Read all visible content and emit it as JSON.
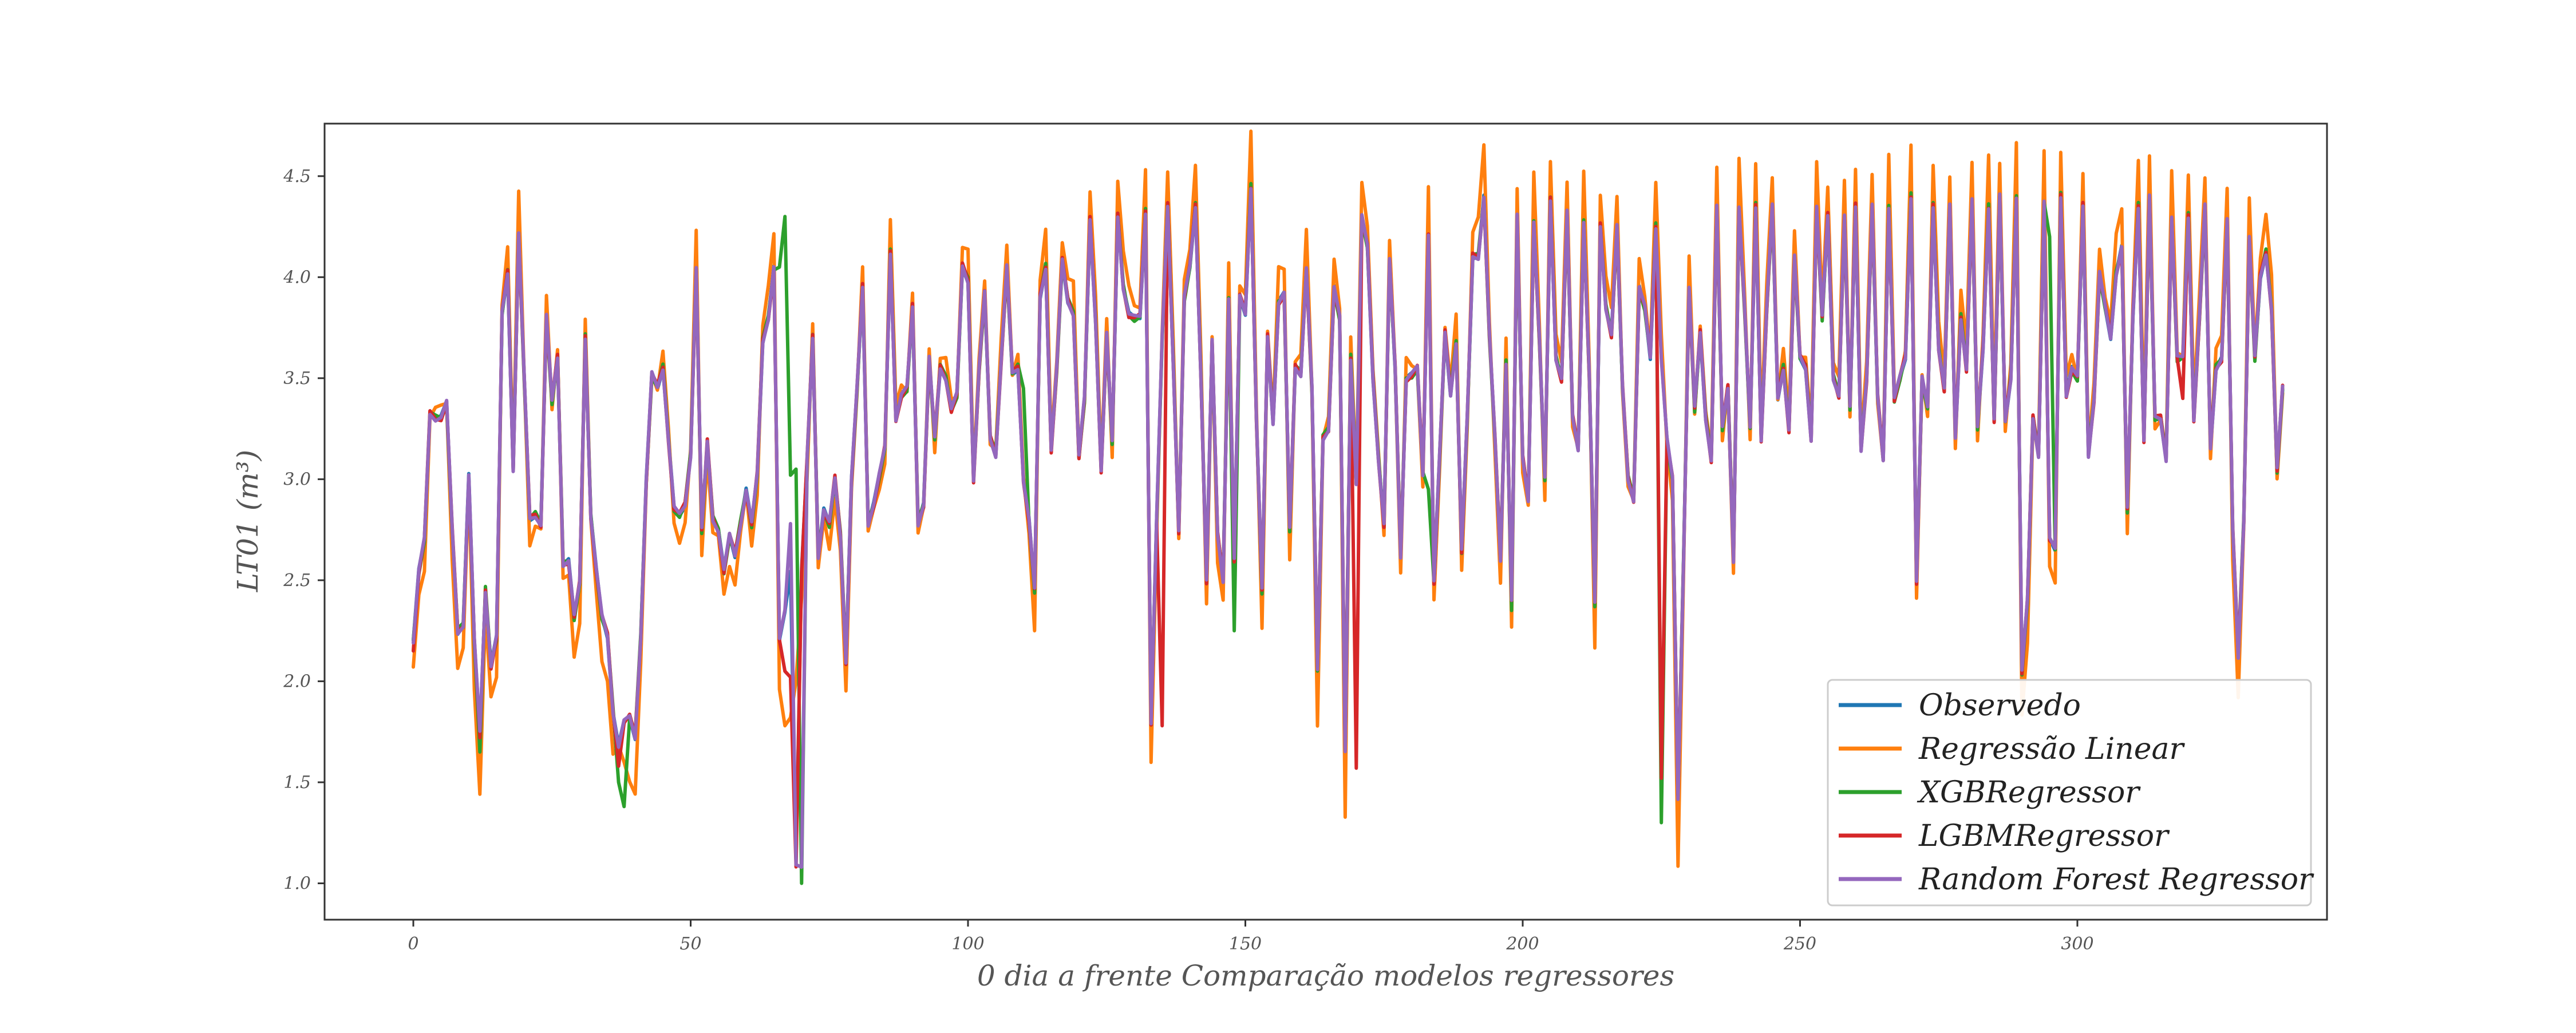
{
  "chart_data": {
    "type": "line",
    "title": "",
    "xlabel": "0 dia a frente Comparação modelos regressores",
    "ylabel": "LT01 (m³)",
    "xlim": [
      -16,
      345
    ],
    "ylim": [
      0.82,
      4.76
    ],
    "xticks": [
      0,
      50,
      100,
      150,
      200,
      250,
      300
    ],
    "yticks": [
      1.0,
      1.5,
      2.0,
      2.5,
      3.0,
      3.5,
      4.0,
      4.5
    ],
    "xtick_labels": [
      "0",
      "50",
      "100",
      "150",
      "200",
      "250",
      "300"
    ],
    "ytick_labels": [
      "1.0",
      "1.5",
      "2.0",
      "2.5",
      "3.0",
      "3.5",
      "4.0",
      "4.5"
    ],
    "grid": false,
    "legend_position": "lower-right",
    "x_start": 0,
    "base": [
      2.2,
      2.55,
      2.7,
      3.32,
      3.3,
      3.31,
      3.38,
      2.75,
      2.24,
      2.28,
      3.02,
      2.2,
      1.75,
      2.45,
      2.08,
      2.22,
      3.82,
      4.02,
      3.05,
      4.22,
      3.5,
      2.8,
      2.82,
      2.78,
      3.81,
      3.38,
      3.6,
      2.58,
      2.6,
      2.32,
      2.48,
      3.7,
      2.82,
      2.55,
      2.32,
      2.22,
      1.85,
      1.68,
      1.8,
      1.82,
      1.72,
      2.22,
      3.0,
      3.52,
      3.45,
      3.55,
      3.2,
      2.86,
      2.82,
      2.87,
      3.12,
      4.05,
      2.75,
      3.18,
      2.8,
      2.75,
      2.55,
      2.72,
      2.62,
      2.78,
      2.95,
      2.78,
      3.02,
      3.68,
      3.8,
      4.05,
      2.2,
      2.35,
      2.55,
      1.1,
      2.55,
      3.1,
      3.7,
      2.62,
      2.85,
      2.78,
      3.0,
      2.72,
      2.1,
      3.0,
      3.45,
      3.95,
      2.78,
      2.88,
      3.02,
      3.15,
      4.12,
      3.3,
      3.42,
      3.45,
      3.85,
      2.78,
      2.88,
      3.6,
      3.2,
      3.55,
      3.5,
      3.35,
      3.42,
      4.05,
      3.98,
      3.0,
      3.55,
      3.92,
      3.2,
      3.12,
      3.6,
      4.05,
      3.52,
      3.55,
      3.0,
      2.8,
      2.45,
      3.9,
      4.05,
      3.15,
      3.55,
      4.08,
      3.88,
      3.82,
      3.12,
      3.4,
      4.28,
      3.78,
      3.05,
      3.72,
      3.18,
      4.3,
      3.95,
      3.82,
      3.8,
      3.8,
      4.32,
      1.8,
      2.8,
      3.7,
      4.35,
      3.58,
      2.75,
      3.9,
      4.05,
      4.35,
      3.5,
      2.5,
      3.68,
      2.72,
      2.5,
      3.9,
      2.6,
      3.9,
      3.82,
      4.45,
      3.3,
      2.45,
      3.7,
      3.28,
      3.88,
      3.92,
      2.75,
      3.55,
      3.52,
      4.05,
      3.45,
      2.05,
      3.2,
      3.25,
      3.95,
      3.8,
      1.65,
      3.6,
      2.98,
      4.3,
      4.15,
      3.5,
      3.1,
      2.78,
      4.08,
      3.55,
      2.62,
      3.5,
      3.52,
      3.55,
      3.02,
      4.22,
      2.5,
      3.1,
      3.72,
      3.42,
      3.68,
      2.65,
      3.3,
      4.1,
      4.1,
      4.4,
      3.72,
      3.2,
      2.6,
      3.58,
      2.4,
      4.3,
      3.1,
      2.9,
      4.28,
      3.7,
      3.0,
      4.38,
      3.6,
      3.5,
      4.32,
      3.3,
      3.15,
      4.28,
      3.52,
      2.38,
      4.25,
      3.85,
      3.72,
      4.25,
      3.45,
      3.0,
      2.9,
      3.95,
      3.85,
      3.6,
      4.25,
      3.6,
      3.2,
      3.0,
      1.42,
      2.6,
      3.95,
      3.35,
      3.72,
      3.3,
      3.1,
      4.35,
      3.25,
      3.45,
      2.6,
      4.35,
      3.85,
      3.25,
      4.35,
      3.2,
      3.85,
      4.35,
      3.4,
      3.55,
      3.25,
      4.1,
      3.6,
      3.55,
      3.2,
      4.35,
      3.8,
      4.3,
      3.5,
      3.42,
      4.3,
      3.35,
      4.35,
      3.15,
      3.5,
      4.35,
      3.4,
      3.1,
      4.35,
      3.4,
      3.5,
      3.6,
      4.4,
      2.5,
      3.5,
      3.35,
      4.35,
      3.65,
      3.45,
      4.35,
      3.2,
      3.8,
      3.55,
      4.38,
      3.25,
      3.65,
      4.35,
      3.3,
      4.4,
      3.28,
      3.5,
      4.4,
      2.05,
      2.4,
      3.3,
      3.12,
      4.38,
      2.7,
      2.65,
      4.4,
      3.42,
      3.55,
      3.5,
      4.35,
      3.12,
      3.4,
      4.02,
      3.85,
      3.7,
      4.02,
      4.15,
      2.85,
      3.8,
      4.35,
      3.2,
      4.4,
      3.3,
      3.3,
      3.1,
      4.3,
      3.6,
      3.6,
      4.3,
      3.3,
      3.8,
      4.35,
      3.15,
      3.55,
      3.6,
      4.28,
      2.75,
      2.12,
      2.8,
      4.2,
      3.6,
      4.0,
      4.12,
      3.85,
      3.05,
      3.45
    ],
    "series": [
      {
        "name": "Observedo",
        "color": "#1f77b4",
        "scale": 1.0,
        "noise": 0.008,
        "phase": 0.3,
        "overrides": {}
      },
      {
        "name": "Regressão Linear",
        "color": "#ff7f0e",
        "scale": 1.18,
        "noise": 0.06,
        "phase": 1.7,
        "overrides": {
          "37": 1.68,
          "38": 1.6,
          "67": 1.78,
          "68": 1.82,
          "69": 2.0
        }
      },
      {
        "name": "XGBRegressor",
        "color": "#2ca02c",
        "scale": 1.0,
        "noise": 0.02,
        "phase": 2.9,
        "overrides": {
          "12": 1.65,
          "37": 1.5,
          "38": 1.38,
          "66": 4.05,
          "67": 4.3,
          "68": 3.02,
          "69": 3.05,
          "70": 1.0,
          "110": 3.45,
          "148": 2.25,
          "183": 2.95,
          "198": 2.35,
          "225": 1.3,
          "295": 4.2
        }
      },
      {
        "name": "LGBMRegressor",
        "color": "#d62728",
        "scale": 1.0,
        "noise": 0.02,
        "phase": 4.1,
        "overrides": {
          "0": 2.15,
          "12": 1.72,
          "37": 1.58,
          "67": 2.05,
          "68": 2.02,
          "135": 1.78,
          "170": 1.57,
          "198": 2.4,
          "225": 1.52,
          "319": 3.4
        }
      },
      {
        "name": "Random Forest Regressor",
        "color": "#9467bd",
        "scale": 1.0,
        "noise": 0.012,
        "phase": 5.3,
        "overrides": {
          "68": 2.78,
          "70": 1.08
        }
      }
    ]
  }
}
